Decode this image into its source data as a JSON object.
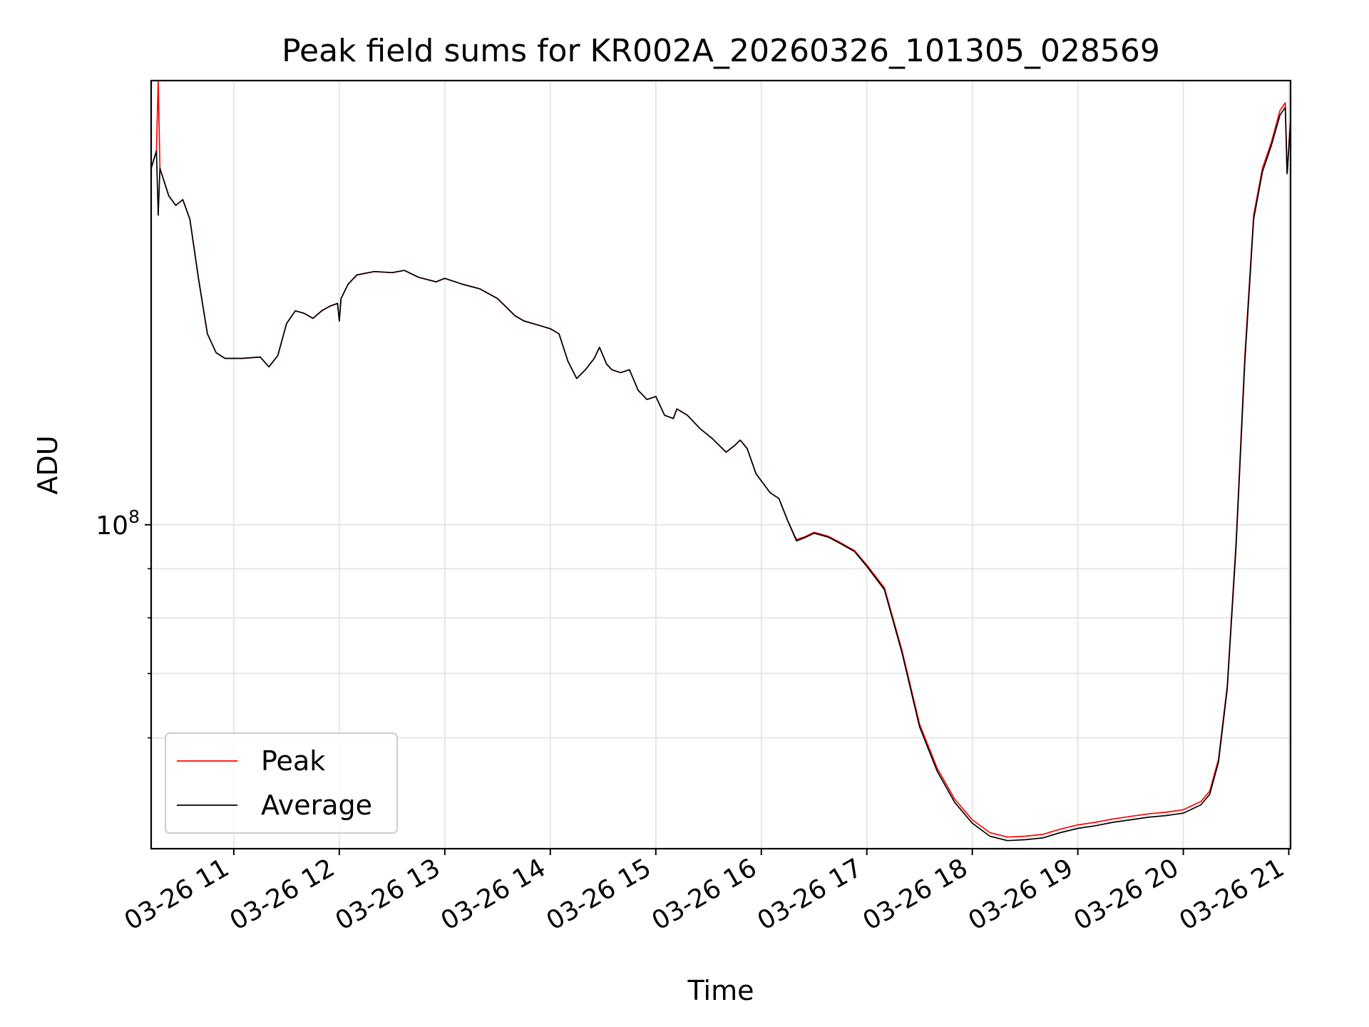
{
  "chart_data": {
    "type": "line",
    "title": "Peak field sums for KR002A_20260326_101305_028569",
    "xlabel": "Time",
    "ylabel": "ADU",
    "yscale": "log",
    "ylim": [
      46000000,
      290000000
    ],
    "xlim": [
      "2026-03-26 10:13",
      "2026-03-26 21:01"
    ],
    "grid": true,
    "legend_position": "lower-left",
    "x_ticks": [
      "03-26 11",
      "03-26 12",
      "03-26 13",
      "03-26 14",
      "03-26 15",
      "03-26 16",
      "03-26 17",
      "03-26 18",
      "03-26 19",
      "03-26 20",
      "03-26 21"
    ],
    "y_ticks": [
      {
        "label": "10",
        "exp": "8",
        "value": 100000000
      }
    ],
    "y_minor_ticks": [
      60000000,
      70000000,
      80000000,
      90000000
    ],
    "series": [
      {
        "name": "Peak",
        "color": "#ff0000",
        "points": [
          [
            "2026-03-26 10:13",
            235000000
          ],
          [
            "2026-03-26 10:16",
            245000000
          ],
          [
            "2026-03-26 10:17",
            290000000
          ],
          [
            "2026-03-26 10:18",
            235000000
          ],
          [
            "2026-03-26 10:23",
            220000000
          ],
          [
            "2026-03-26 10:27",
            215000000
          ],
          [
            "2026-03-26 10:31",
            218000000
          ],
          [
            "2026-03-26 10:35",
            208000000
          ],
          [
            "2026-03-26 10:40",
            180000000
          ],
          [
            "2026-03-26 10:45",
            158000000
          ],
          [
            "2026-03-26 10:50",
            151000000
          ],
          [
            "2026-03-26 10:55",
            149000000
          ],
          [
            "2026-03-26 11:05",
            149000000
          ],
          [
            "2026-03-26 11:15",
            149500000
          ],
          [
            "2026-03-26 11:20",
            146000000
          ],
          [
            "2026-03-26 11:25",
            150000000
          ],
          [
            "2026-03-26 11:30",
            162000000
          ],
          [
            "2026-03-26 11:35",
            167000000
          ],
          [
            "2026-03-26 11:40",
            166000000
          ],
          [
            "2026-03-26 11:45",
            164000000
          ],
          [
            "2026-03-26 11:50",
            167000000
          ],
          [
            "2026-03-26 11:55",
            169000000
          ],
          [
            "2026-03-26 11:59",
            170000000
          ],
          [
            "2026-03-26 12:00",
            163000000
          ],
          [
            "2026-03-26 12:01",
            172000000
          ],
          [
            "2026-03-26 12:05",
            178000000
          ],
          [
            "2026-03-26 12:10",
            182000000
          ],
          [
            "2026-03-26 12:20",
            183500000
          ],
          [
            "2026-03-26 12:30",
            183000000
          ],
          [
            "2026-03-26 12:37",
            184000000
          ],
          [
            "2026-03-26 12:45",
            181000000
          ],
          [
            "2026-03-26 12:55",
            179000000
          ],
          [
            "2026-03-26 13:00",
            180500000
          ],
          [
            "2026-03-26 13:10",
            178000000
          ],
          [
            "2026-03-26 13:20",
            176000000
          ],
          [
            "2026-03-26 13:30",
            172000000
          ],
          [
            "2026-03-26 13:40",
            165000000
          ],
          [
            "2026-03-26 13:45",
            163000000
          ],
          [
            "2026-03-26 13:50",
            162000000
          ],
          [
            "2026-03-26 14:00",
            160000000
          ],
          [
            "2026-03-26 14:05",
            158000000
          ],
          [
            "2026-03-26 14:10",
            148000000
          ],
          [
            "2026-03-26 14:15",
            142000000
          ],
          [
            "2026-03-26 14:20",
            145000000
          ],
          [
            "2026-03-26 14:25",
            149000000
          ],
          [
            "2026-03-26 14:28",
            153000000
          ],
          [
            "2026-03-26 14:32",
            147000000
          ],
          [
            "2026-03-26 14:35",
            145000000
          ],
          [
            "2026-03-26 14:40",
            144000000
          ],
          [
            "2026-03-26 14:45",
            145000000
          ],
          [
            "2026-03-26 14:50",
            138000000
          ],
          [
            "2026-03-26 14:55",
            135000000
          ],
          [
            "2026-03-26 15:00",
            136000000
          ],
          [
            "2026-03-26 15:05",
            130000000
          ],
          [
            "2026-03-26 15:10",
            129000000
          ],
          [
            "2026-03-26 15:12",
            132000000
          ],
          [
            "2026-03-26 15:18",
            130000000
          ],
          [
            "2026-03-26 15:25",
            126000000
          ],
          [
            "2026-03-26 15:32",
            123000000
          ],
          [
            "2026-03-26 15:40",
            119000000
          ],
          [
            "2026-03-26 15:45",
            121000000
          ],
          [
            "2026-03-26 15:48",
            122500000
          ],
          [
            "2026-03-26 15:52",
            120000000
          ],
          [
            "2026-03-26 15:57",
            113000000
          ],
          [
            "2026-03-26 16:05",
            108000000
          ],
          [
            "2026-03-26 16:10",
            106500000
          ],
          [
            "2026-03-26 16:15",
            101000000
          ],
          [
            "2026-03-26 16:20",
            96500000
          ],
          [
            "2026-03-26 16:25",
            97200000
          ],
          [
            "2026-03-26 16:30",
            98200000
          ],
          [
            "2026-03-26 16:38",
            97300000
          ],
          [
            "2026-03-26 16:45",
            95800000
          ],
          [
            "2026-03-26 16:53",
            94000000
          ],
          [
            "2026-03-26 17:00",
            90800000
          ],
          [
            "2026-03-26 17:10",
            86000000
          ],
          [
            "2026-03-26 17:20",
            74000000
          ],
          [
            "2026-03-26 17:30",
            62000000
          ],
          [
            "2026-03-26 17:40",
            55800000
          ],
          [
            "2026-03-26 17:50",
            51800000
          ],
          [
            "2026-03-26 18:00",
            49300000
          ],
          [
            "2026-03-26 18:10",
            47800000
          ],
          [
            "2026-03-26 18:20",
            47300000
          ],
          [
            "2026-03-26 18:30",
            47400000
          ],
          [
            "2026-03-26 18:40",
            47600000
          ],
          [
            "2026-03-26 18:50",
            48200000
          ],
          [
            "2026-03-26 19:00",
            48700000
          ],
          [
            "2026-03-26 19:10",
            49000000
          ],
          [
            "2026-03-26 19:20",
            49400000
          ],
          [
            "2026-03-26 19:30",
            49700000
          ],
          [
            "2026-03-26 19:40",
            50000000
          ],
          [
            "2026-03-26 19:50",
            50200000
          ],
          [
            "2026-03-26 20:00",
            50500000
          ],
          [
            "2026-03-26 20:10",
            51500000
          ],
          [
            "2026-03-26 20:15",
            52800000
          ],
          [
            "2026-03-26 20:20",
            57000000
          ],
          [
            "2026-03-26 20:25",
            68000000
          ],
          [
            "2026-03-26 20:30",
            96000000
          ],
          [
            "2026-03-26 20:35",
            150000000
          ],
          [
            "2026-03-26 20:40",
            210000000
          ],
          [
            "2026-03-26 20:45",
            235000000
          ],
          [
            "2026-03-26 20:50",
            250000000
          ],
          [
            "2026-03-26 20:55",
            270000000
          ],
          [
            "2026-03-26 20:58",
            275000000
          ],
          [
            "2026-03-26 20:59",
            232000000
          ],
          [
            "2026-03-26 21:01",
            265000000
          ]
        ]
      },
      {
        "name": "Average",
        "color": "#000000",
        "points": [
          [
            "2026-03-26 10:13",
            235000000
          ],
          [
            "2026-03-26 10:16",
            245000000
          ],
          [
            "2026-03-26 10:17",
            210000000
          ],
          [
            "2026-03-26 10:18",
            235000000
          ],
          [
            "2026-03-26 10:23",
            220000000
          ],
          [
            "2026-03-26 10:27",
            215000000
          ],
          [
            "2026-03-26 10:31",
            218000000
          ],
          [
            "2026-03-26 10:35",
            208000000
          ],
          [
            "2026-03-26 10:40",
            180000000
          ],
          [
            "2026-03-26 10:45",
            158000000
          ],
          [
            "2026-03-26 10:50",
            151000000
          ],
          [
            "2026-03-26 10:55",
            149000000
          ],
          [
            "2026-03-26 11:05",
            149000000
          ],
          [
            "2026-03-26 11:15",
            149500000
          ],
          [
            "2026-03-26 11:20",
            146000000
          ],
          [
            "2026-03-26 11:25",
            150000000
          ],
          [
            "2026-03-26 11:30",
            162000000
          ],
          [
            "2026-03-26 11:35",
            167000000
          ],
          [
            "2026-03-26 11:40",
            166000000
          ],
          [
            "2026-03-26 11:45",
            164000000
          ],
          [
            "2026-03-26 11:50",
            167000000
          ],
          [
            "2026-03-26 11:55",
            169000000
          ],
          [
            "2026-03-26 11:59",
            170000000
          ],
          [
            "2026-03-26 12:00",
            163000000
          ],
          [
            "2026-03-26 12:01",
            172000000
          ],
          [
            "2026-03-26 12:05",
            178000000
          ],
          [
            "2026-03-26 12:10",
            182000000
          ],
          [
            "2026-03-26 12:20",
            183500000
          ],
          [
            "2026-03-26 12:30",
            183000000
          ],
          [
            "2026-03-26 12:37",
            184000000
          ],
          [
            "2026-03-26 12:45",
            181000000
          ],
          [
            "2026-03-26 12:55",
            179000000
          ],
          [
            "2026-03-26 13:00",
            180500000
          ],
          [
            "2026-03-26 13:10",
            178000000
          ],
          [
            "2026-03-26 13:20",
            176000000
          ],
          [
            "2026-03-26 13:30",
            172000000
          ],
          [
            "2026-03-26 13:40",
            165000000
          ],
          [
            "2026-03-26 13:45",
            163000000
          ],
          [
            "2026-03-26 13:50",
            162000000
          ],
          [
            "2026-03-26 14:00",
            160000000
          ],
          [
            "2026-03-26 14:05",
            158000000
          ],
          [
            "2026-03-26 14:10",
            148000000
          ],
          [
            "2026-03-26 14:15",
            142000000
          ],
          [
            "2026-03-26 14:20",
            145000000
          ],
          [
            "2026-03-26 14:25",
            149000000
          ],
          [
            "2026-03-26 14:28",
            153000000
          ],
          [
            "2026-03-26 14:32",
            147000000
          ],
          [
            "2026-03-26 14:35",
            145000000
          ],
          [
            "2026-03-26 14:40",
            144000000
          ],
          [
            "2026-03-26 14:45",
            145000000
          ],
          [
            "2026-03-26 14:50",
            138000000
          ],
          [
            "2026-03-26 14:55",
            135000000
          ],
          [
            "2026-03-26 15:00",
            136000000
          ],
          [
            "2026-03-26 15:05",
            130000000
          ],
          [
            "2026-03-26 15:10",
            129000000
          ],
          [
            "2026-03-26 15:12",
            132000000
          ],
          [
            "2026-03-26 15:18",
            130000000
          ],
          [
            "2026-03-26 15:25",
            126000000
          ],
          [
            "2026-03-26 15:32",
            123000000
          ],
          [
            "2026-03-26 15:40",
            119000000
          ],
          [
            "2026-03-26 15:45",
            121000000
          ],
          [
            "2026-03-26 15:48",
            122500000
          ],
          [
            "2026-03-26 15:52",
            120000000
          ],
          [
            "2026-03-26 15:57",
            113000000
          ],
          [
            "2026-03-26 16:05",
            108000000
          ],
          [
            "2026-03-26 16:10",
            106500000
          ],
          [
            "2026-03-26 16:15",
            101000000
          ],
          [
            "2026-03-26 16:20",
            96200000
          ],
          [
            "2026-03-26 16:25",
            97000000
          ],
          [
            "2026-03-26 16:30",
            98000000
          ],
          [
            "2026-03-26 16:38",
            97100000
          ],
          [
            "2026-03-26 16:45",
            95600000
          ],
          [
            "2026-03-26 16:53",
            93800000
          ],
          [
            "2026-03-26 17:00",
            90500000
          ],
          [
            "2026-03-26 17:10",
            85600000
          ],
          [
            "2026-03-26 17:20",
            73600000
          ],
          [
            "2026-03-26 17:30",
            61600000
          ],
          [
            "2026-03-26 17:40",
            55400000
          ],
          [
            "2026-03-26 17:50",
            51400000
          ],
          [
            "2026-03-26 18:00",
            48900000
          ],
          [
            "2026-03-26 18:10",
            47400000
          ],
          [
            "2026-03-26 18:20",
            46900000
          ],
          [
            "2026-03-26 18:30",
            47000000
          ],
          [
            "2026-03-26 18:40",
            47200000
          ],
          [
            "2026-03-26 18:50",
            47800000
          ],
          [
            "2026-03-26 19:00",
            48300000
          ],
          [
            "2026-03-26 19:10",
            48600000
          ],
          [
            "2026-03-26 19:20",
            49000000
          ],
          [
            "2026-03-26 19:30",
            49300000
          ],
          [
            "2026-03-26 19:40",
            49600000
          ],
          [
            "2026-03-26 19:50",
            49800000
          ],
          [
            "2026-03-26 20:00",
            50100000
          ],
          [
            "2026-03-26 20:10",
            51100000
          ],
          [
            "2026-03-26 20:15",
            52400000
          ],
          [
            "2026-03-26 20:20",
            56600000
          ],
          [
            "2026-03-26 20:25",
            67500000
          ],
          [
            "2026-03-26 20:30",
            95000000
          ],
          [
            "2026-03-26 20:35",
            148000000
          ],
          [
            "2026-03-26 20:40",
            208000000
          ],
          [
            "2026-03-26 20:45",
            233000000
          ],
          [
            "2026-03-26 20:50",
            248000000
          ],
          [
            "2026-03-26 20:55",
            267000000
          ],
          [
            "2026-03-26 20:58",
            272000000
          ],
          [
            "2026-03-26 20:59",
            232000000
          ],
          [
            "2026-03-26 21:01",
            262000000
          ]
        ]
      }
    ]
  }
}
